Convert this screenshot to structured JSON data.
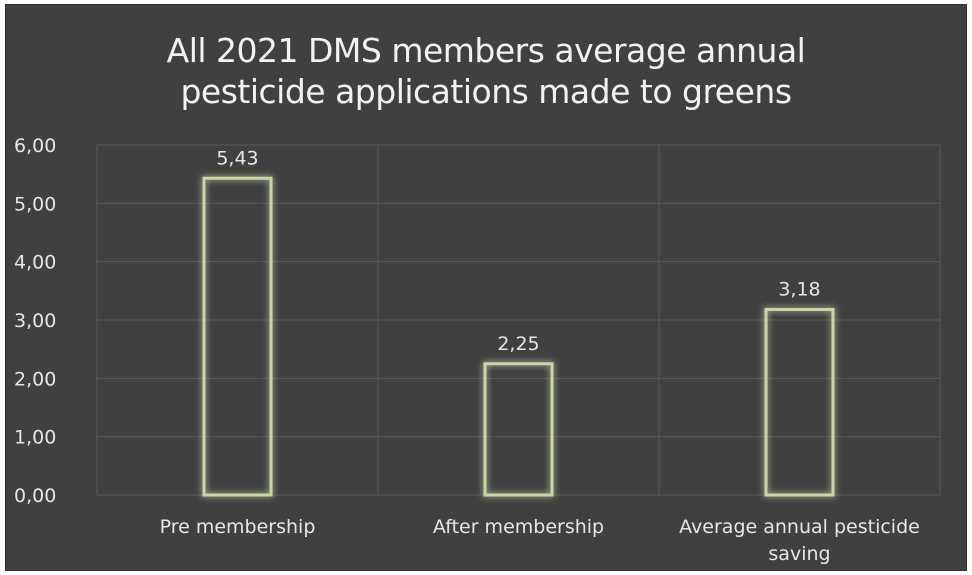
{
  "chart_data": {
    "type": "bar",
    "title": "All 2021 DMS members average annual\npesticide applications made to greens",
    "categories": [
      "Pre membership",
      "After membership",
      "Average annual pesticide saving"
    ],
    "values": [
      5.43,
      2.25,
      3.18
    ],
    "data_labels": [
      "5,43",
      "2,25",
      "3,18"
    ],
    "y_ticks": [
      0,
      1,
      2,
      3,
      4,
      5,
      6
    ],
    "y_tick_labels": [
      "0,00",
      "1,00",
      "2,00",
      "3,00",
      "4,00",
      "5,00",
      "6,00"
    ],
    "ylim": [
      0,
      6
    ],
    "xlabel": "",
    "ylabel": "",
    "grid": true,
    "legend": "none",
    "colors": {
      "background": "#404040",
      "bar_outline": "#c9d6a8",
      "bar_glow": "#8fae3a",
      "text": "#e6e6e6",
      "grid": "#5a5a5a"
    }
  }
}
